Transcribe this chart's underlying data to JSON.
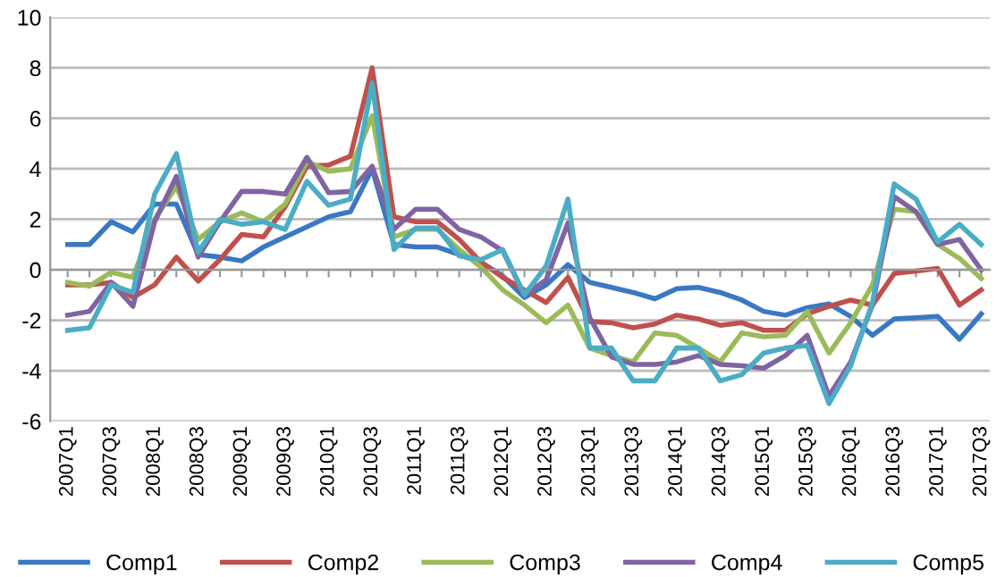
{
  "chart_data": {
    "type": "line",
    "categories": [
      "2007Q1",
      null,
      "2007Q3",
      null,
      "2008Q1",
      null,
      "2008Q3",
      null,
      "2009Q1",
      null,
      "2009Q3",
      null,
      "2010Q1",
      null,
      "2010Q3",
      null,
      "2011Q1",
      null,
      "2011Q3",
      null,
      "2012Q1",
      null,
      "2012Q3",
      null,
      "2013Q1",
      null,
      "2013Q3",
      null,
      "2014Q1",
      null,
      "2014Q3",
      null,
      "2015Q1",
      null,
      "2015Q3",
      null,
      "2016Q1",
      null,
      "2016Q3",
      null,
      "2017Q1",
      null,
      "2017Q3"
    ],
    "series": [
      {
        "name": "Comp1",
        "color": "#3a78c3",
        "values": [
          1.0,
          1.0,
          1.9,
          1.5,
          2.6,
          2.6,
          0.6,
          0.5,
          0.35,
          0.9,
          1.3,
          1.7,
          2.1,
          2.3,
          4.0,
          1.0,
          0.9,
          0.9,
          0.6,
          0.3,
          -0.25,
          -1.1,
          -0.6,
          0.2,
          -0.5,
          -0.7,
          -0.9,
          -1.15,
          -0.75,
          -0.7,
          -0.9,
          -1.2,
          -1.65,
          -1.8,
          -1.5,
          -1.35,
          -1.85,
          -2.6,
          -1.95,
          -1.9,
          -1.85,
          -2.75,
          -1.75
        ]
      },
      {
        "name": "Comp2",
        "color": "#c0504d",
        "values": [
          -0.6,
          -0.6,
          -0.5,
          -1.1,
          -0.6,
          0.5,
          -0.45,
          0.4,
          1.4,
          1.3,
          2.5,
          4.1,
          4.15,
          4.5,
          8.0,
          2.1,
          1.9,
          1.9,
          1.2,
          0.3,
          -0.3,
          -0.8,
          -1.3,
          -0.3,
          -2.05,
          -2.1,
          -2.3,
          -2.15,
          -1.8,
          -1.95,
          -2.2,
          -2.1,
          -2.4,
          -2.4,
          -1.75,
          -1.45,
          -1.2,
          -1.4,
          -0.15,
          -0.05,
          0.05,
          -1.4,
          -0.8
        ]
      },
      {
        "name": "Comp3",
        "color": "#9bbb59",
        "values": [
          -0.5,
          -0.65,
          -0.1,
          -0.3,
          2.0,
          3.3,
          1.2,
          1.9,
          2.25,
          1.9,
          2.6,
          4.3,
          3.9,
          4.0,
          6.1,
          1.3,
          1.6,
          1.6,
          0.8,
          0.1,
          -0.8,
          -1.4,
          -2.1,
          -1.4,
          -3.1,
          -3.4,
          -3.65,
          -2.5,
          -2.6,
          -3.1,
          -3.65,
          -2.5,
          -2.65,
          -2.6,
          -1.65,
          -3.3,
          -2.1,
          -0.6,
          2.4,
          2.3,
          1.0,
          0.45,
          -0.35
        ]
      },
      {
        "name": "Comp4",
        "color": "#8064a2",
        "values": [
          -1.8,
          -1.65,
          -0.5,
          -1.45,
          1.9,
          3.7,
          0.5,
          1.9,
          3.1,
          3.1,
          3.0,
          4.45,
          3.05,
          3.1,
          4.1,
          1.6,
          2.4,
          2.4,
          1.6,
          1.3,
          0.75,
          -1.0,
          -0.4,
          1.85,
          -1.9,
          -3.45,
          -3.75,
          -3.75,
          -3.65,
          -3.4,
          -3.75,
          -3.8,
          -3.9,
          -3.4,
          -2.6,
          -5.0,
          -3.65,
          -1.4,
          2.9,
          2.3,
          1.0,
          1.2,
          0.0
        ]
      },
      {
        "name": "Comp5",
        "color": "#4bacc6",
        "values": [
          -2.4,
          -2.3,
          -0.6,
          -0.9,
          3.0,
          4.6,
          0.7,
          2.0,
          1.8,
          1.9,
          1.6,
          3.5,
          2.55,
          2.8,
          7.4,
          0.8,
          1.65,
          1.65,
          0.55,
          0.4,
          0.8,
          -1.0,
          0.15,
          2.8,
          -3.1,
          -3.1,
          -4.4,
          -4.4,
          -3.1,
          -3.1,
          -4.4,
          -4.15,
          -3.3,
          -3.1,
          -3.0,
          -5.3,
          -3.8,
          -1.3,
          3.4,
          2.8,
          1.1,
          1.8,
          1.0
        ]
      }
    ],
    "ylim": [
      -6,
      10
    ],
    "yticks": [
      -6,
      -4,
      -2,
      0,
      2,
      4,
      6,
      8,
      10
    ],
    "grid": "y",
    "legend": "bottom",
    "marker": "none",
    "line_style": "solid"
  }
}
